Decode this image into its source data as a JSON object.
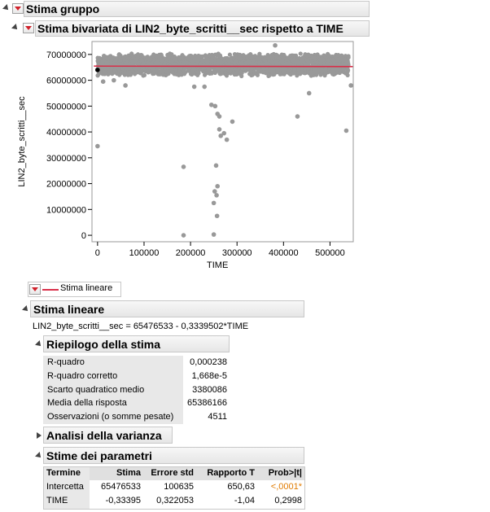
{
  "group_title": "Stima gruppo",
  "bivariate_title": "Stima bivariata di LIN2_byte_scritti__sec rispetto a TIME",
  "chart_data": {
    "type": "scatter",
    "xlabel": "TIME",
    "ylabel": "LIN2_byte_scritti__sec",
    "xlim": [
      -12000,
      550000
    ],
    "ylim": [
      -2500000,
      75000000
    ],
    "x_ticks": [
      "0",
      "100000",
      "200000",
      "300000",
      "400000",
      "500000"
    ],
    "x_tick_values": [
      0,
      100000,
      200000,
      300000,
      400000,
      500000
    ],
    "y_ticks": [
      "70000000",
      "60000000",
      "50000000",
      "40000000",
      "30000000",
      "20000000",
      "10000000",
      "0"
    ],
    "y_tick_values": [
      70000000,
      60000000,
      50000000,
      40000000,
      30000000,
      20000000,
      10000000,
      0
    ],
    "dense_band": {
      "x_range": [
        0,
        540000
      ],
      "y_range": [
        61500000,
        70500000
      ]
    },
    "outliers": [
      [
        0,
        34500000
      ],
      [
        0,
        64000000
      ],
      [
        12000,
        59500000
      ],
      [
        35000,
        60000000
      ],
      [
        60000,
        58000000
      ],
      [
        185000,
        26500000
      ],
      [
        185000,
        0
      ],
      [
        208000,
        57500000
      ],
      [
        230000,
        57500000
      ],
      [
        245000,
        50500000
      ],
      [
        253000,
        50000000
      ],
      [
        258000,
        47000000
      ],
      [
        262000,
        41000000
      ],
      [
        265000,
        38500000
      ],
      [
        272000,
        39500000
      ],
      [
        278000,
        37000000
      ],
      [
        262000,
        46000000
      ],
      [
        255000,
        27000000
      ],
      [
        258000,
        19000000
      ],
      [
        252000,
        17000000
      ],
      [
        256000,
        15500000
      ],
      [
        250000,
        12500000
      ],
      [
        257000,
        7500000
      ],
      [
        250000,
        300000
      ],
      [
        290000,
        44000000
      ],
      [
        382000,
        73500000
      ],
      [
        430000,
        46000000
      ],
      [
        455000,
        55000000
      ],
      [
        535000,
        40500000
      ],
      [
        545000,
        58000000
      ]
    ],
    "fit_line": {
      "intercept": 65476533,
      "slope": -0.3339502,
      "color": "#d9304a"
    },
    "colors": {
      "points": "#999999",
      "selected": "#000000",
      "line": "#d9304a"
    }
  },
  "legend": {
    "label": "Stima lineare"
  },
  "linear_fit": {
    "title": "Stima lineare",
    "equation": "LIN2_byte_scritti__sec = 65476533 - 0,3339502*TIME"
  },
  "summary": {
    "title": "Riepilogo della stima",
    "rows": [
      {
        "label": "R-quadro",
        "value": "0,000238"
      },
      {
        "label": "R-quadro corretto",
        "value": "1,668e-5"
      },
      {
        "label": "Scarto quadratico medio",
        "value": "3380086"
      },
      {
        "label": "Media della risposta",
        "value": "65386166"
      },
      {
        "label": "Osservazioni (o somme pesate)",
        "value": "4511"
      }
    ]
  },
  "anova": {
    "title": "Analisi della varianza"
  },
  "params": {
    "title": "Stime dei parametri",
    "headers": [
      "Termine",
      "Stima",
      "Errore std",
      "Rapporto T",
      "Prob>|t|"
    ],
    "rows": [
      {
        "term": "Intercetta",
        "estimate": "65476533",
        "std_err": "100635",
        "t_ratio": "650,63",
        "prob": "<,0001*"
      },
      {
        "term": "TIME",
        "estimate": "-0,33395",
        "std_err": "0,322053",
        "t_ratio": "-1,04",
        "prob": "0,2998"
      }
    ],
    "sig_color": "#e07b00"
  }
}
